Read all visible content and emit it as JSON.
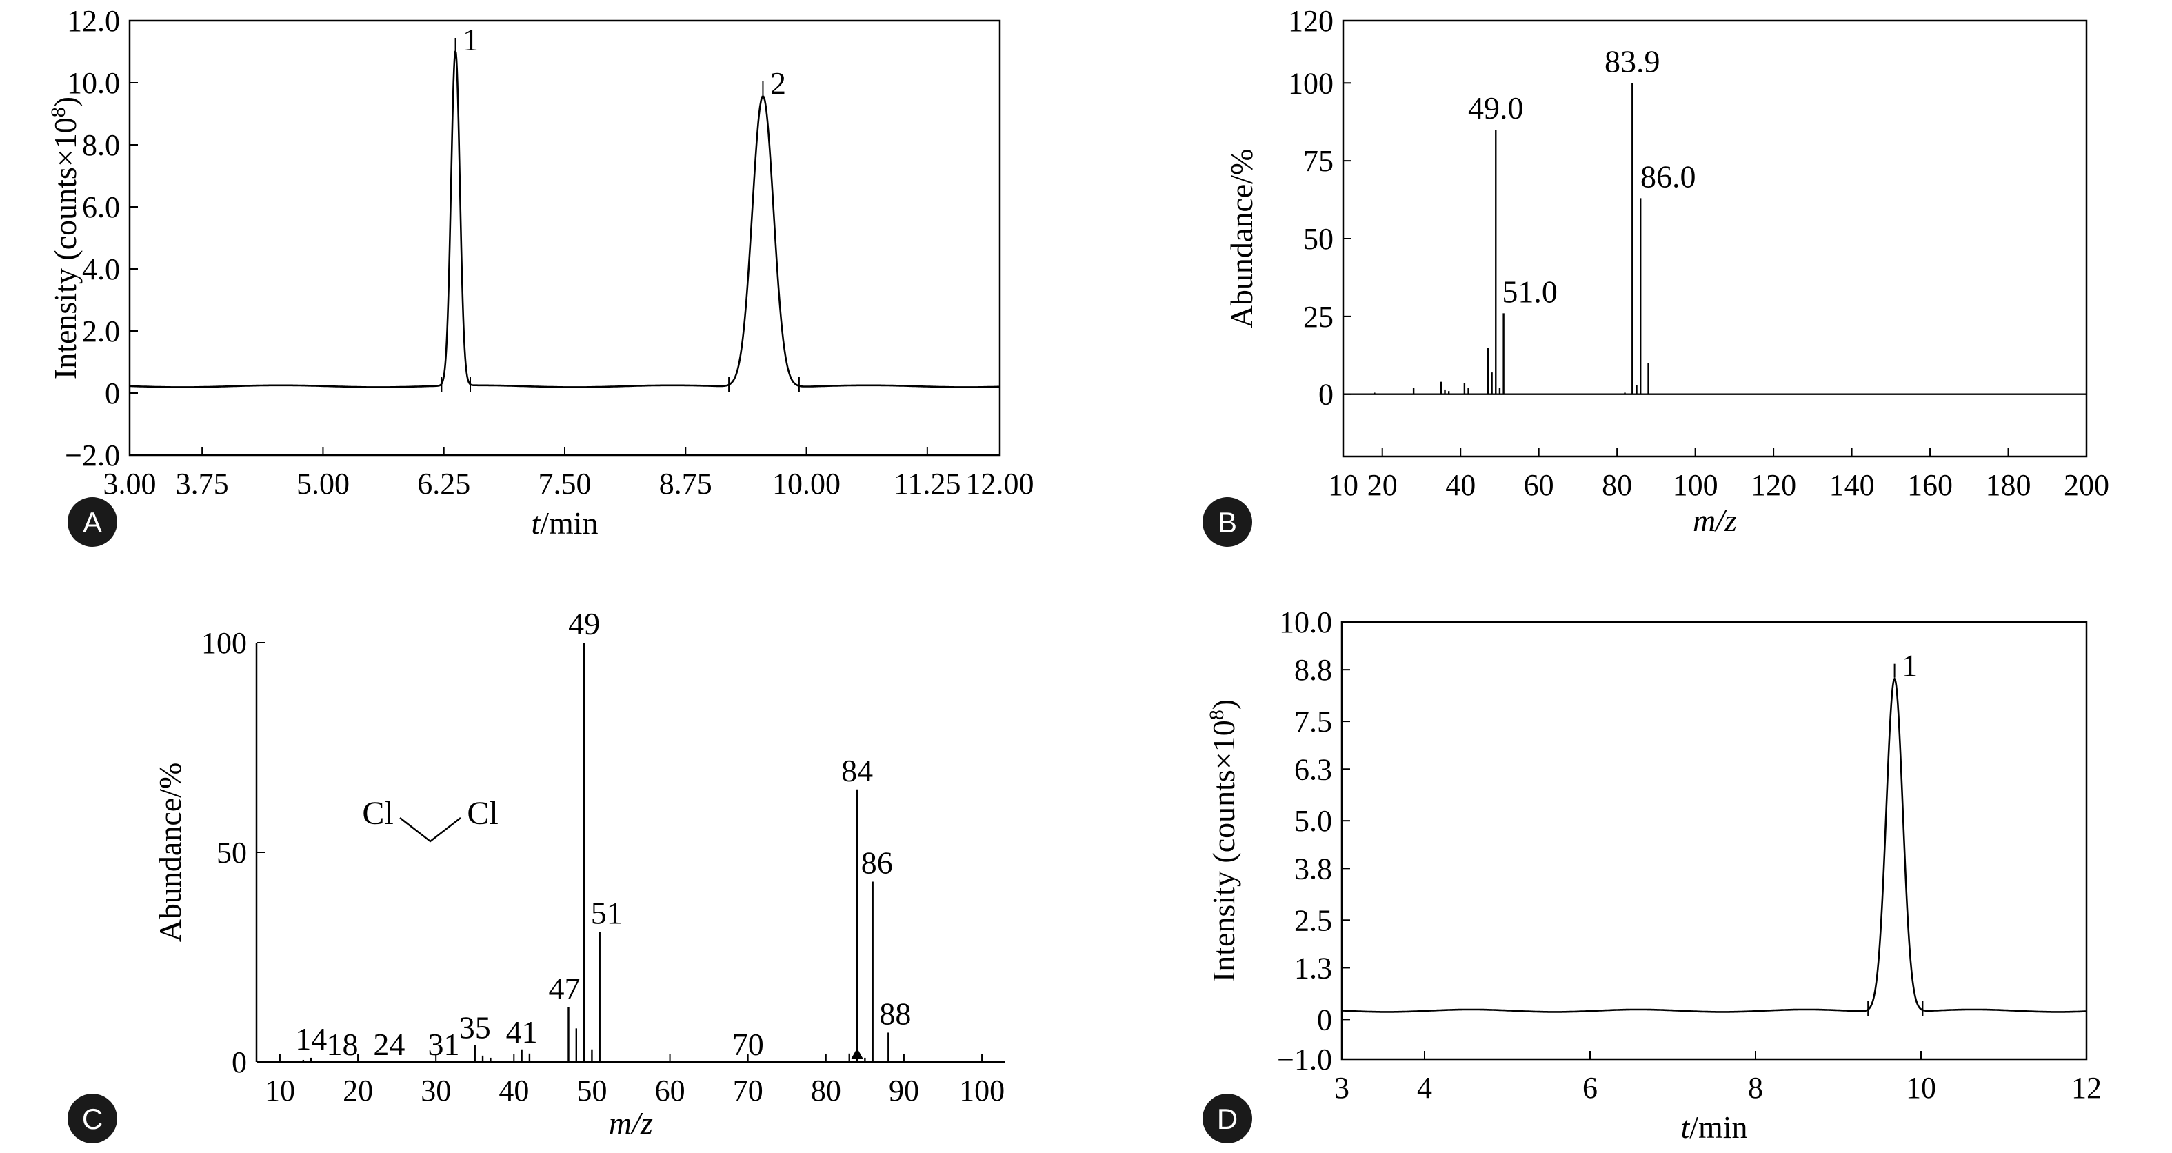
{
  "chart_data": [
    {
      "id": "A",
      "type": "line",
      "panel_label": "A",
      "xlabel_italic": "t",
      "xlabel_rest": "/min",
      "ylabel": "Intensity (counts×10",
      "ylabel_sup": "8",
      "ylabel_end": ")",
      "xlim": [
        3.0,
        12.0
      ],
      "ylim": [
        -2.0,
        12.0
      ],
      "xticks": [
        {
          "v": 3.0,
          "t": "3.00"
        },
        {
          "v": 3.75,
          "t": "3.75"
        },
        {
          "v": 5.0,
          "t": "5.00"
        },
        {
          "v": 6.25,
          "t": "6.25"
        },
        {
          "v": 7.5,
          "t": "7.50"
        },
        {
          "v": 8.75,
          "t": "8.75"
        },
        {
          "v": 10.0,
          "t": "10.00"
        },
        {
          "v": 11.25,
          "t": "11.25"
        },
        {
          "v": 12.0,
          "t": "12.00"
        }
      ],
      "yticks": [
        {
          "v": -2.0,
          "t": "−2.0"
        },
        {
          "v": 0,
          "t": "0"
        },
        {
          "v": 2.0,
          "t": "2.0"
        },
        {
          "v": 4.0,
          "t": "4.0"
        },
        {
          "v": 6.0,
          "t": "6.0"
        },
        {
          "v": 8.0,
          "t": "8.0"
        },
        {
          "v": 10.0,
          "t": "10.0"
        },
        {
          "v": 12.0,
          "t": "12.0"
        }
      ],
      "baseline": 0.22,
      "peaks": [
        {
          "label": "1",
          "rt": 6.37,
          "height": 11.0,
          "width": 0.045
        },
        {
          "label": "2",
          "rt": 9.55,
          "height": 9.6,
          "width": 0.11
        }
      ]
    },
    {
      "id": "B",
      "type": "bar",
      "panel_label": "B",
      "xlabel": "m/z",
      "ylabel": "Abundance/%",
      "xlim": [
        10,
        200
      ],
      "ylim": [
        -20,
        120
      ],
      "xticks": [
        {
          "v": 10,
          "t": "10"
        },
        {
          "v": 20,
          "t": "20"
        },
        {
          "v": 40,
          "t": "40"
        },
        {
          "v": 60,
          "t": "60"
        },
        {
          "v": 80,
          "t": "80"
        },
        {
          "v": 100,
          "t": "100"
        },
        {
          "v": 120,
          "t": "120"
        },
        {
          "v": 140,
          "t": "140"
        },
        {
          "v": 160,
          "t": "160"
        },
        {
          "v": 180,
          "t": "180"
        },
        {
          "v": 200,
          "t": "200"
        }
      ],
      "yticks": [
        {
          "v": 0,
          "t": "0"
        },
        {
          "v": 25,
          "t": "25"
        },
        {
          "v": 50,
          "t": "50"
        },
        {
          "v": 75,
          "t": "75"
        },
        {
          "v": 100,
          "t": "100"
        },
        {
          "v": 120,
          "t": "120"
        }
      ],
      "bars": [
        {
          "mz": 18,
          "ab": 0.5
        },
        {
          "mz": 28,
          "ab": 2
        },
        {
          "mz": 35,
          "ab": 4
        },
        {
          "mz": 36,
          "ab": 1.5
        },
        {
          "mz": 37,
          "ab": 1
        },
        {
          "mz": 41,
          "ab": 3.5
        },
        {
          "mz": 42,
          "ab": 2
        },
        {
          "mz": 47,
          "ab": 15
        },
        {
          "mz": 48,
          "ab": 7
        },
        {
          "mz": 49.0,
          "ab": 85
        },
        {
          "mz": 50,
          "ab": 2
        },
        {
          "mz": 51.0,
          "ab": 26
        },
        {
          "mz": 82,
          "ab": 0.5
        },
        {
          "mz": 83.9,
          "ab": 100
        },
        {
          "mz": 85,
          "ab": 3
        },
        {
          "mz": 86.0,
          "ab": 63
        },
        {
          "mz": 88,
          "ab": 10
        }
      ],
      "labels": [
        {
          "mz": 49.0,
          "ab": 85,
          "t": "49.0"
        },
        {
          "mz": 51.0,
          "ab": 26,
          "t": "51.0"
        },
        {
          "mz": 83.9,
          "ab": 100,
          "t": "83.9"
        },
        {
          "mz": 86.0,
          "ab": 63,
          "t": "86.0"
        }
      ]
    },
    {
      "id": "C",
      "type": "bar",
      "panel_label": "C",
      "xlabel": "m/z",
      "ylabel": "Abundance/%",
      "xlim": [
        7,
        103
      ],
      "ylim": [
        0,
        100
      ],
      "xticks": [
        {
          "v": 10,
          "t": "10"
        },
        {
          "v": 20,
          "t": "20"
        },
        {
          "v": 30,
          "t": "30"
        },
        {
          "v": 40,
          "t": "40"
        },
        {
          "v": 50,
          "t": "50"
        },
        {
          "v": 60,
          "t": "60"
        },
        {
          "v": 70,
          "t": "70"
        },
        {
          "v": 80,
          "t": "80"
        },
        {
          "v": 90,
          "t": "90"
        },
        {
          "v": 100,
          "t": "100"
        }
      ],
      "yticks": [
        {
          "v": 0,
          "t": "0"
        },
        {
          "v": 50,
          "t": "50"
        },
        {
          "v": 100,
          "t": "100"
        }
      ],
      "bars": [
        {
          "mz": 13,
          "ab": 0.5
        },
        {
          "mz": 14,
          "ab": 1
        },
        {
          "mz": 35,
          "ab": 4
        },
        {
          "mz": 36,
          "ab": 1.5
        },
        {
          "mz": 37,
          "ab": 1
        },
        {
          "mz": 41,
          "ab": 3
        },
        {
          "mz": 42,
          "ab": 2
        },
        {
          "mz": 47,
          "ab": 13
        },
        {
          "mz": 48,
          "ab": 8
        },
        {
          "mz": 49,
          "ab": 100
        },
        {
          "mz": 50,
          "ab": 3
        },
        {
          "mz": 51,
          "ab": 31
        },
        {
          "mz": 83,
          "ab": 2
        },
        {
          "mz": 84,
          "ab": 65
        },
        {
          "mz": 85,
          "ab": 1
        },
        {
          "mz": 86,
          "ab": 43
        },
        {
          "mz": 88,
          "ab": 7
        }
      ],
      "labels": [
        {
          "mz": 14,
          "ab": 1,
          "t": "14"
        },
        {
          "mz": 18,
          "ab": 0,
          "t": "18"
        },
        {
          "mz": 24,
          "ab": 0,
          "t": "24"
        },
        {
          "mz": 31,
          "ab": 0,
          "t": "31"
        },
        {
          "mz": 35,
          "ab": 4,
          "t": "35"
        },
        {
          "mz": 41,
          "ab": 3,
          "t": "41"
        },
        {
          "mz": 47,
          "ab": 13,
          "t": "47"
        },
        {
          "mz": 49,
          "ab": 100,
          "t": "49"
        },
        {
          "mz": 51,
          "ab": 31,
          "t": "51"
        },
        {
          "mz": 70,
          "ab": 0,
          "t": "70"
        },
        {
          "mz": 84,
          "ab": 65,
          "t": "84"
        },
        {
          "mz": 86,
          "ab": 43,
          "t": "86"
        },
        {
          "mz": 88,
          "ab": 7,
          "t": "88"
        }
      ],
      "structure": {
        "left": "Cl",
        "right": "Cl"
      },
      "marker_mz": 84
    },
    {
      "id": "D",
      "type": "line",
      "panel_label": "D",
      "xlabel_italic": "t",
      "xlabel_rest": "/min",
      "ylabel": "Intensity (counts×10",
      "ylabel_sup": "8",
      "ylabel_end": ")",
      "xlim": [
        3,
        12
      ],
      "ylim": [
        -1.0,
        10.0
      ],
      "xticks": [
        {
          "v": 3,
          "t": "3"
        },
        {
          "v": 4,
          "t": "4"
        },
        {
          "v": 6,
          "t": "6"
        },
        {
          "v": 8,
          "t": "8"
        },
        {
          "v": 10,
          "t": "10"
        },
        {
          "v": 12,
          "t": "12"
        }
      ],
      "yticks": [
        {
          "v": -1.0,
          "t": "−1.0"
        },
        {
          "v": 0,
          "t": "0"
        },
        {
          "v": 1.3,
          "t": "1.3"
        },
        {
          "v": 2.5,
          "t": "2.5"
        },
        {
          "v": 3.8,
          "t": "3.8"
        },
        {
          "v": 5.0,
          "t": "5.0"
        },
        {
          "v": 6.3,
          "t": "6.3"
        },
        {
          "v": 7.5,
          "t": "7.5"
        },
        {
          "v": 8.8,
          "t": "8.8"
        },
        {
          "v": 10.0,
          "t": "10.0"
        }
      ],
      "baseline": 0.22,
      "peaks": [
        {
          "label": "1",
          "rt": 9.68,
          "height": 8.6,
          "width": 0.1
        }
      ]
    }
  ]
}
